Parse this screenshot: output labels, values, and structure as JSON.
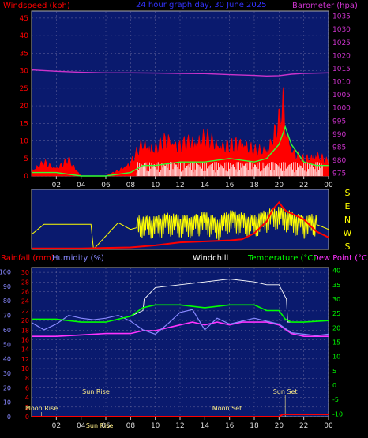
{
  "header": {
    "left": "Windspeed (kph)",
    "center": "24 hour graph day, 30 June 2025",
    "right": "Barometer (hpa)"
  },
  "colors": {
    "bg": "#000000",
    "panel": "#0a1a6e",
    "grid": "#6a6a9e",
    "wind": "#ff0000",
    "gust": "#ffffff",
    "baro": "#cc33cc",
    "avgwind": "#33ff33",
    "direction": "#ffff00",
    "humidity": "#8888ff",
    "temperature": "#00ff00",
    "dewpoint": "#ff33ff",
    "windchill": "#ffffff",
    "rain": "#ff0000",
    "leftaxis": "#ff0000",
    "humaxis": "#8888ff",
    "tempaxis": "#00ff00",
    "baroaxis": "#cc33cc"
  },
  "chart_data": [
    {
      "type": "line",
      "name": "wind-panel",
      "x_ticks": [
        "02",
        "04",
        "06",
        "08",
        "10",
        "12",
        "14",
        "16",
        "18",
        "20",
        "22",
        "00"
      ],
      "left_axis": {
        "label": "Windspeed (kph)",
        "ticks": [
          "0",
          "5",
          "10",
          "15",
          "20",
          "25",
          "30",
          "35",
          "40",
          "45"
        ],
        "ylim": [
          0,
          47
        ]
      },
      "right_axis": {
        "label": "Barometer (hpa)",
        "ticks": [
          "975",
          "980",
          "985",
          "990",
          "995",
          "1000",
          "1005",
          "1010",
          "1015",
          "1020",
          "1025",
          "1030",
          "1035"
        ],
        "ylim": [
          974,
          1037
        ]
      },
      "barometer": {
        "x": [
          0,
          2,
          4,
          6,
          8,
          10,
          12,
          14,
          16,
          18,
          19,
          20,
          21,
          22,
          24
        ],
        "y": [
          1014.5,
          1014.0,
          1013.6,
          1013.4,
          1013.4,
          1013.3,
          1013.2,
          1013.1,
          1012.7,
          1012.4,
          1012.2,
          1012.3,
          1012.9,
          1013.2,
          1013.4
        ]
      },
      "windspeed_envelope": {
        "x": [
          0,
          1,
          2,
          3,
          4,
          5,
          6,
          7,
          8,
          9,
          10,
          11,
          12,
          13,
          14,
          15,
          16,
          17,
          18,
          19,
          19.5,
          20,
          20.3,
          20.6,
          21,
          21.5,
          22,
          23,
          24
        ],
        "y": [
          2,
          5,
          3,
          6,
          0,
          0,
          0,
          2,
          5,
          12,
          10,
          14,
          11,
          13,
          14,
          12,
          11,
          13,
          9,
          10,
          14,
          20,
          28,
          17,
          10,
          8,
          6,
          8,
          5
        ]
      },
      "average_wind": {
        "x": [
          0,
          2,
          4,
          6,
          8,
          9,
          10,
          12,
          14,
          16,
          18,
          19,
          20,
          20.5,
          21,
          22,
          23,
          24
        ],
        "y": [
          1,
          1,
          0,
          0,
          1,
          3,
          3,
          4,
          4,
          5,
          4,
          5,
          9,
          14,
          9,
          4,
          3,
          3
        ]
      }
    },
    {
      "type": "line",
      "name": "direction-panel",
      "right_labels": [
        "S",
        "E",
        "N",
        "W",
        "S"
      ],
      "direction_deg": {
        "x": [
          0,
          1,
          1.8,
          3,
          4,
          4.8,
          5,
          6,
          7,
          8,
          9,
          10,
          11,
          12,
          13,
          14,
          15,
          16,
          17,
          18,
          19,
          20,
          21,
          22,
          23,
          24
        ],
        "y": [
          90,
          150,
          150,
          150,
          150,
          150,
          0,
          80,
          160,
          120,
          140,
          130,
          150,
          140,
          135,
          160,
          120,
          170,
          150,
          140,
          170,
          190,
          160,
          130,
          150,
          120
        ]
      },
      "wind_trace": {
        "x": [
          0,
          4,
          8,
          10,
          12,
          14,
          16,
          17,
          18,
          19,
          19.5,
          20,
          20.3,
          20.6,
          21,
          22,
          23,
          24
        ],
        "y": [
          1,
          1,
          2,
          4,
          7,
          8,
          9,
          10,
          16,
          28,
          40,
          47,
          42,
          38,
          36,
          30,
          18,
          12
        ]
      }
    },
    {
      "type": "line",
      "name": "temperature-panel",
      "legend": [
        "Rainfall (mm)",
        "Humidity (%)",
        "Windchill",
        "Temperature (°C)",
        "Dew Point (°C)"
      ],
      "x_ticks": [
        "02",
        "04",
        "06",
        "08",
        "10",
        "12",
        "14",
        "16",
        "18",
        "20",
        "22",
        "00"
      ],
      "humidity_axis": {
        "ticks": [
          "0",
          "10",
          "20",
          "30",
          "40",
          "50",
          "60",
          "70",
          "80",
          "90",
          "100"
        ],
        "ylim": [
          0,
          103
        ]
      },
      "rain_axis": {
        "ticks": [
          "0",
          "2",
          "4",
          "6",
          "8",
          "10",
          "12",
          "14",
          "16",
          "18",
          "20",
          "22",
          "24",
          "26",
          "28",
          "30"
        ],
        "ylim": [
          0,
          31
        ]
      },
      "temp_axis": {
        "ticks": [
          "-10",
          "-5",
          "0",
          "5",
          "10",
          "15",
          "20",
          "25",
          "30",
          "35",
          "40"
        ],
        "ylim": [
          -11,
          41
        ]
      },
      "events": [
        {
          "label": "Moon Rise",
          "hour": 0.8
        },
        {
          "label": "Sun Rise",
          "hour": 5.2
        },
        {
          "label": "Sun Set",
          "hour": 20.5
        },
        {
          "label": "Moon Set",
          "hour": 15.8
        }
      ],
      "sun_label_extra": "Sun Rise",
      "temperature": {
        "x": [
          0,
          2,
          4,
          6,
          7,
          8,
          9,
          10,
          12,
          14,
          16,
          18,
          19,
          20,
          20.5,
          21,
          22,
          24
        ],
        "y": [
          23,
          23,
          22,
          22,
          23,
          24,
          27,
          28,
          28,
          27,
          28,
          28,
          26,
          26,
          23,
          22,
          22,
          22.5
        ]
      },
      "windchill": {
        "x": [
          0,
          2,
          4,
          6,
          8,
          9,
          9.1,
          10,
          12,
          14,
          16,
          18,
          19,
          20,
          20.6,
          20.7,
          22,
          24
        ],
        "y": [
          23,
          23,
          22,
          22,
          24,
          26,
          30,
          34,
          35,
          36,
          37,
          36,
          35,
          35,
          30,
          22,
          22,
          22.5
        ]
      },
      "humidity": {
        "x": [
          0,
          1,
          2,
          3,
          4,
          5,
          6,
          7,
          8,
          9,
          10,
          11,
          12,
          13,
          14,
          15,
          16,
          17,
          18,
          19,
          20,
          21,
          22,
          23,
          24
        ],
        "y": [
          65,
          60,
          64,
          70,
          68,
          67,
          68,
          70,
          66,
          60,
          57,
          64,
          72,
          74,
          60,
          68,
          64,
          66,
          68,
          66,
          64,
          58,
          57,
          56,
          57
        ]
      },
      "dewpoint": {
        "x": [
          0,
          2,
          4,
          6,
          8,
          9,
          10,
          11,
          12,
          13,
          14,
          15,
          16,
          17,
          18,
          19,
          20,
          21,
          22,
          24
        ],
        "y": [
          17,
          17,
          17.5,
          18,
          18,
          19,
          19,
          20,
          21,
          22,
          21,
          22,
          21,
          22,
          22,
          22,
          21,
          18,
          17,
          17
        ]
      },
      "rain_cumulative": {
        "x": [
          0,
          20,
          20.3,
          24
        ],
        "y": [
          0,
          0,
          0.5,
          0.5
        ]
      }
    }
  ]
}
